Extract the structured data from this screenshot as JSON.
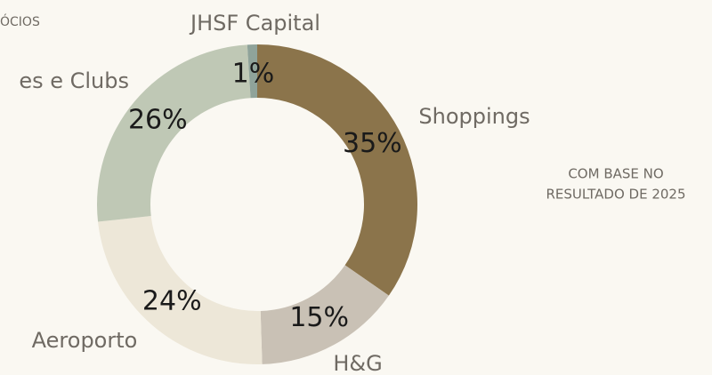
{
  "chart_data": {
    "type": "donut",
    "header": "ÓCIOS",
    "note": [
      "COM BASE NO",
      "RESULTADO DE 2025"
    ],
    "categories": [
      "Shoppings",
      "H&G",
      "Aeroporto",
      "es e Clubs",
      "JHSF Capital"
    ],
    "values": [
      35,
      15,
      24,
      26,
      1
    ],
    "value_labels": [
      "35%",
      "15%",
      "24%",
      "26%",
      "1%"
    ],
    "colors": [
      "#8b744b",
      "#c9c1b5",
      "#ede7d8",
      "#bfc8b5",
      "#8fa39a"
    ]
  }
}
